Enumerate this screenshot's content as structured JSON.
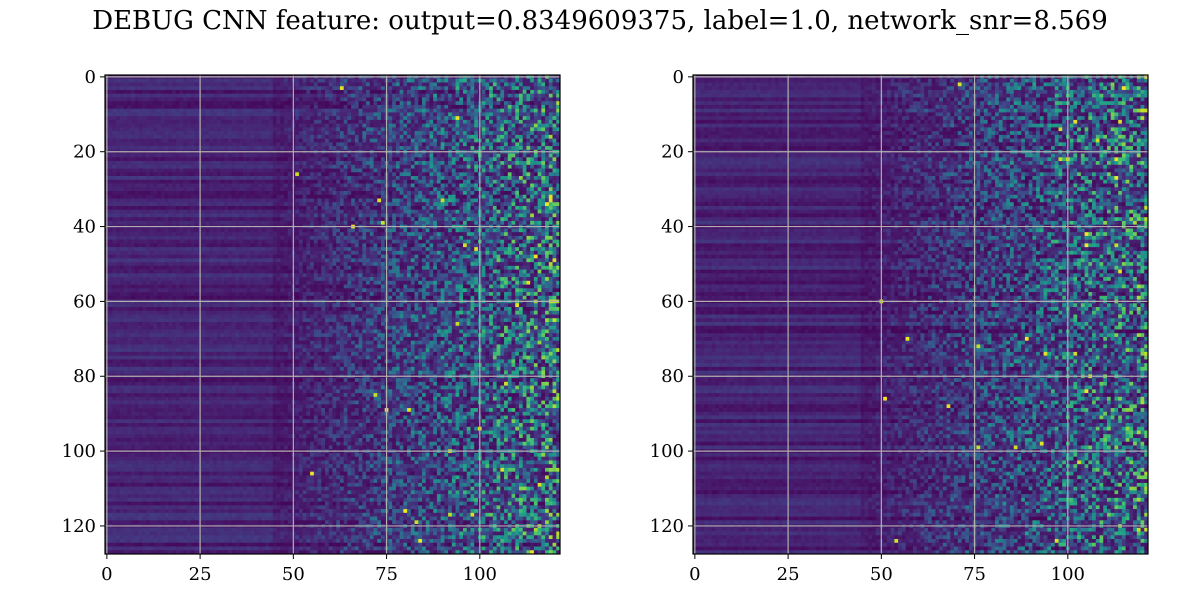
{
  "title": "DEBUG CNN feature: output=0.8349609375, label=1.0, network_snr=8.569",
  "chart_data": [
    {
      "type": "heatmap",
      "name": "",
      "rows": 128,
      "cols": 122,
      "colormap": "viridis",
      "grid": true,
      "xlim": [
        -0.5,
        121.5
      ],
      "ylim": [
        127.5,
        -0.5
      ],
      "xticks": [
        0,
        25,
        50,
        75,
        100
      ],
      "yticks": [
        0,
        20,
        40,
        60,
        80,
        100,
        120
      ],
      "pattern": "left columns ~0-45 dark horizontal bands; columns ~70-121 noisy teal/green speckles with sparse yellow peaks",
      "seed": 7
    },
    {
      "type": "heatmap",
      "name": "",
      "rows": 128,
      "cols": 122,
      "colormap": "viridis",
      "grid": true,
      "xlim": [
        -0.5,
        121.5
      ],
      "ylim": [
        127.5,
        -0.5
      ],
      "xticks": [
        0,
        25,
        50,
        75,
        100
      ],
      "yticks": [
        0,
        20,
        40,
        60,
        80,
        100,
        120
      ],
      "pattern": "left columns ~0-40 dark horizontal bands; columns ~70-121 noisy teal/green speckles with sparse yellow peaks",
      "seed": 23
    }
  ]
}
